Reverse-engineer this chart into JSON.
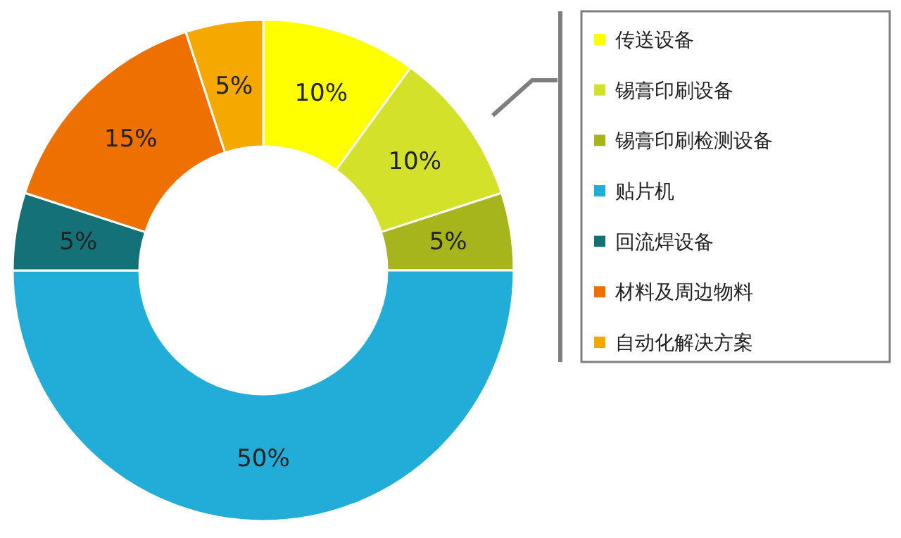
{
  "chart_data": {
    "type": "donut",
    "categories": [
      "传送设备",
      "锡膏印刷设备",
      "锡膏印刷检测设备",
      "贴片机",
      "回流焊设备",
      "材料及周边物料",
      "自动化解决方案"
    ],
    "values": [
      10,
      10,
      5,
      50,
      5,
      15,
      5
    ],
    "value_labels": [
      "10%",
      "10%",
      "5%",
      "50%",
      "5%",
      "15%",
      "5%"
    ],
    "colors": [
      "#ffff00",
      "#d3e12b",
      "#a6b51b",
      "#22add9",
      "#147177",
      "#ee7100",
      "#f5a900"
    ],
    "legend": "right"
  }
}
